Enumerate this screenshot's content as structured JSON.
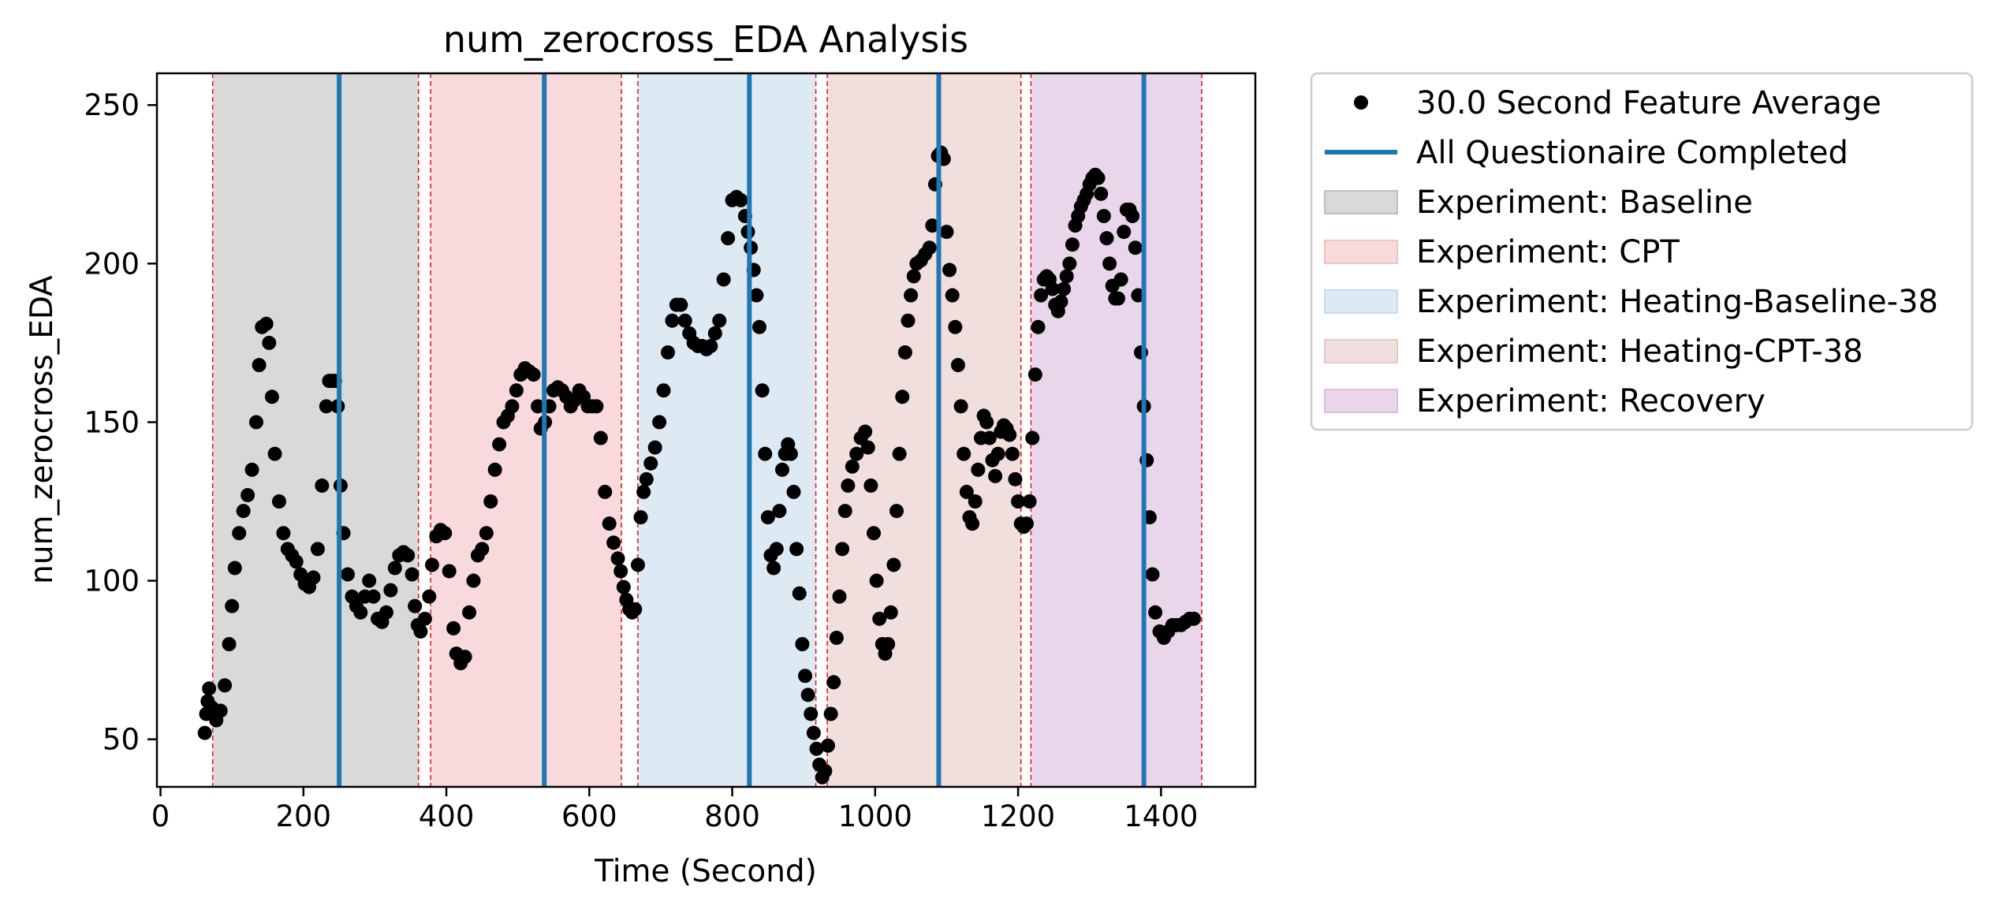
{
  "chart_data": {
    "type": "scatter",
    "title": "num_zerocross_EDA Analysis",
    "xlabel": "Time (Second)",
    "ylabel": "num_zerocross_EDA",
    "xlim": [
      -5,
      1532
    ],
    "ylim": [
      35,
      260
    ],
    "xticks": [
      0,
      200,
      400,
      600,
      800,
      1000,
      1200,
      1400
    ],
    "yticks": [
      50,
      100,
      150,
      200,
      250
    ],
    "grid": false,
    "legend_position": "outside-right",
    "series": [
      {
        "name": "30.0 Second Feature Average",
        "kind": "scatter",
        "color": "#000000",
        "points": [
          [
            62,
            52
          ],
          [
            64,
            58
          ],
          [
            66,
            62
          ],
          [
            68,
            66
          ],
          [
            72,
            60
          ],
          [
            78,
            56
          ],
          [
            84,
            59
          ],
          [
            90,
            67
          ],
          [
            96,
            80
          ],
          [
            100,
            92
          ],
          [
            104,
            104
          ],
          [
            110,
            115
          ],
          [
            116,
            122
          ],
          [
            122,
            127
          ],
          [
            128,
            135
          ],
          [
            134,
            150
          ],
          [
            138,
            168
          ],
          [
            142,
            180
          ],
          [
            148,
            181
          ],
          [
            152,
            175
          ],
          [
            156,
            158
          ],
          [
            160,
            140
          ],
          [
            166,
            125
          ],
          [
            172,
            115
          ],
          [
            178,
            110
          ],
          [
            184,
            108
          ],
          [
            190,
            106
          ],
          [
            196,
            102
          ],
          [
            202,
            99
          ],
          [
            208,
            98
          ],
          [
            214,
            101
          ],
          [
            220,
            110
          ],
          [
            226,
            130
          ],
          [
            232,
            155
          ],
          [
            236,
            163
          ],
          [
            240,
            163
          ],
          [
            244,
            163
          ],
          [
            248,
            155
          ],
          [
            252,
            130
          ],
          [
            256,
            115
          ],
          [
            262,
            102
          ],
          [
            268,
            95
          ],
          [
            274,
            92
          ],
          [
            280,
            90
          ],
          [
            286,
            95
          ],
          [
            292,
            100
          ],
          [
            298,
            95
          ],
          [
            304,
            88
          ],
          [
            310,
            87
          ],
          [
            316,
            90
          ],
          [
            322,
            97
          ],
          [
            328,
            104
          ],
          [
            334,
            108
          ],
          [
            340,
            109
          ],
          [
            346,
            108
          ],
          [
            352,
            102
          ],
          [
            356,
            92
          ],
          [
            360,
            86
          ],
          [
            364,
            84
          ],
          [
            370,
            88
          ],
          [
            376,
            95
          ],
          [
            380,
            105
          ],
          [
            386,
            114
          ],
          [
            392,
            116
          ],
          [
            398,
            115
          ],
          [
            404,
            103
          ],
          [
            410,
            85
          ],
          [
            414,
            77
          ],
          [
            420,
            74
          ],
          [
            426,
            76
          ],
          [
            432,
            90
          ],
          [
            438,
            100
          ],
          [
            444,
            108
          ],
          [
            450,
            110
          ],
          [
            456,
            115
          ],
          [
            462,
            125
          ],
          [
            468,
            135
          ],
          [
            474,
            143
          ],
          [
            480,
            150
          ],
          [
            486,
            152
          ],
          [
            492,
            155
          ],
          [
            498,
            160
          ],
          [
            504,
            165
          ],
          [
            510,
            167
          ],
          [
            516,
            166
          ],
          [
            522,
            165
          ],
          [
            528,
            155
          ],
          [
            532,
            148
          ],
          [
            538,
            150
          ],
          [
            544,
            155
          ],
          [
            550,
            160
          ],
          [
            556,
            161
          ],
          [
            562,
            160
          ],
          [
            568,
            158
          ],
          [
            574,
            155
          ],
          [
            580,
            157
          ],
          [
            586,
            160
          ],
          [
            592,
            158
          ],
          [
            598,
            155
          ],
          [
            604,
            155
          ],
          [
            610,
            155
          ],
          [
            616,
            145
          ],
          [
            622,
            128
          ],
          [
            628,
            118
          ],
          [
            634,
            112
          ],
          [
            640,
            107
          ],
          [
            644,
            103
          ],
          [
            648,
            98
          ],
          [
            652,
            94
          ],
          [
            656,
            91
          ],
          [
            660,
            90
          ],
          [
            664,
            91
          ],
          [
            668,
            105
          ],
          [
            672,
            120
          ],
          [
            676,
            128
          ],
          [
            680,
            132
          ],
          [
            686,
            137
          ],
          [
            692,
            142
          ],
          [
            698,
            150
          ],
          [
            704,
            160
          ],
          [
            710,
            172
          ],
          [
            716,
            182
          ],
          [
            722,
            187
          ],
          [
            728,
            187
          ],
          [
            734,
            182
          ],
          [
            740,
            178
          ],
          [
            746,
            175
          ],
          [
            752,
            174
          ],
          [
            758,
            174
          ],
          [
            764,
            173
          ],
          [
            770,
            174
          ],
          [
            776,
            178
          ],
          [
            782,
            182
          ],
          [
            788,
            195
          ],
          [
            794,
            208
          ],
          [
            800,
            220
          ],
          [
            806,
            221
          ],
          [
            812,
            220
          ],
          [
            818,
            215
          ],
          [
            822,
            210
          ],
          [
            826,
            205
          ],
          [
            830,
            198
          ],
          [
            834,
            190
          ],
          [
            838,
            180
          ],
          [
            842,
            160
          ],
          [
            846,
            140
          ],
          [
            850,
            120
          ],
          [
            854,
            108
          ],
          [
            858,
            104
          ],
          [
            862,
            110
          ],
          [
            866,
            122
          ],
          [
            870,
            135
          ],
          [
            874,
            140
          ],
          [
            878,
            143
          ],
          [
            882,
            140
          ],
          [
            886,
            128
          ],
          [
            890,
            110
          ],
          [
            894,
            96
          ],
          [
            898,
            80
          ],
          [
            902,
            70
          ],
          [
            906,
            64
          ],
          [
            910,
            58
          ],
          [
            914,
            52
          ],
          [
            918,
            47
          ],
          [
            922,
            42
          ],
          [
            926,
            38
          ],
          [
            930,
            40
          ],
          [
            934,
            48
          ],
          [
            938,
            58
          ],
          [
            942,
            68
          ],
          [
            946,
            82
          ],
          [
            950,
            95
          ],
          [
            954,
            110
          ],
          [
            958,
            122
          ],
          [
            962,
            130
          ],
          [
            968,
            136
          ],
          [
            974,
            140
          ],
          [
            980,
            145
          ],
          [
            986,
            147
          ],
          [
            990,
            142
          ],
          [
            994,
            130
          ],
          [
            998,
            115
          ],
          [
            1002,
            100
          ],
          [
            1006,
            88
          ],
          [
            1010,
            80
          ],
          [
            1014,
            77
          ],
          [
            1018,
            80
          ],
          [
            1022,
            90
          ],
          [
            1026,
            105
          ],
          [
            1030,
            122
          ],
          [
            1034,
            140
          ],
          [
            1038,
            158
          ],
          [
            1042,
            172
          ],
          [
            1046,
            182
          ],
          [
            1050,
            190
          ],
          [
            1054,
            196
          ],
          [
            1058,
            200
          ],
          [
            1064,
            201
          ],
          [
            1070,
            203
          ],
          [
            1076,
            205
          ],
          [
            1080,
            212
          ],
          [
            1084,
            225
          ],
          [
            1088,
            234
          ],
          [
            1092,
            235
          ],
          [
            1096,
            233
          ],
          [
            1100,
            210
          ],
          [
            1104,
            198
          ],
          [
            1108,
            190
          ],
          [
            1112,
            180
          ],
          [
            1116,
            168
          ],
          [
            1120,
            155
          ],
          [
            1124,
            140
          ],
          [
            1128,
            128
          ],
          [
            1132,
            120
          ],
          [
            1136,
            118
          ],
          [
            1140,
            125
          ],
          [
            1144,
            135
          ],
          [
            1148,
            145
          ],
          [
            1152,
            152
          ],
          [
            1156,
            150
          ],
          [
            1160,
            145
          ],
          [
            1164,
            138
          ],
          [
            1168,
            133
          ],
          [
            1172,
            140
          ],
          [
            1176,
            147
          ],
          [
            1180,
            149
          ],
          [
            1184,
            148
          ],
          [
            1188,
            146
          ],
          [
            1192,
            140
          ],
          [
            1196,
            132
          ],
          [
            1200,
            125
          ],
          [
            1204,
            118
          ],
          [
            1208,
            117
          ],
          [
            1212,
            118
          ],
          [
            1216,
            125
          ],
          [
            1220,
            145
          ],
          [
            1224,
            165
          ],
          [
            1228,
            180
          ],
          [
            1232,
            190
          ],
          [
            1236,
            195
          ],
          [
            1240,
            196
          ],
          [
            1244,
            195
          ],
          [
            1248,
            192
          ],
          [
            1252,
            187
          ],
          [
            1256,
            185
          ],
          [
            1260,
            188
          ],
          [
            1264,
            192
          ],
          [
            1268,
            196
          ],
          [
            1272,
            200
          ],
          [
            1276,
            206
          ],
          [
            1280,
            212
          ],
          [
            1284,
            215
          ],
          [
            1288,
            218
          ],
          [
            1292,
            220
          ],
          [
            1296,
            222
          ],
          [
            1300,
            225
          ],
          [
            1304,
            227
          ],
          [
            1308,
            228
          ],
          [
            1312,
            227
          ],
          [
            1316,
            222
          ],
          [
            1320,
            215
          ],
          [
            1324,
            208
          ],
          [
            1328,
            200
          ],
          [
            1332,
            193
          ],
          [
            1336,
            189
          ],
          [
            1340,
            189
          ],
          [
            1344,
            195
          ],
          [
            1348,
            210
          ],
          [
            1352,
            217
          ],
          [
            1356,
            217
          ],
          [
            1360,
            215
          ],
          [
            1364,
            205
          ],
          [
            1368,
            190
          ],
          [
            1372,
            172
          ],
          [
            1376,
            155
          ],
          [
            1380,
            138
          ],
          [
            1384,
            120
          ],
          [
            1388,
            102
          ],
          [
            1392,
            90
          ],
          [
            1398,
            84
          ],
          [
            1404,
            82
          ],
          [
            1410,
            84
          ],
          [
            1416,
            86
          ],
          [
            1422,
            86
          ],
          [
            1428,
            86
          ],
          [
            1434,
            87
          ],
          [
            1440,
            88
          ],
          [
            1446,
            88
          ]
        ]
      },
      {
        "name": "All Questionaire Completed",
        "kind": "vline",
        "color": "#1f77b4",
        "x": [
          250,
          537,
          824,
          1089,
          1376
        ]
      }
    ],
    "regions": [
      {
        "name": "Experiment: Baseline",
        "color": "#bfbfbf",
        "start": 73,
        "end": 361
      },
      {
        "name": "Experiment: CPT",
        "color": "#f4c1c4",
        "start": 378,
        "end": 645
      },
      {
        "name": "Experiment: Heating-Baseline-38",
        "color": "#c6dced",
        "start": 668,
        "end": 917
      },
      {
        "name": "Experiment: Heating-CPT-38",
        "color": "#e6c9c6",
        "start": 933,
        "end": 1204
      },
      {
        "name": "Experiment: Recovery",
        "color": "#dcbbdc",
        "start": 1218,
        "end": 1457
      }
    ],
    "boundary_line_color": "#e21c1c"
  }
}
